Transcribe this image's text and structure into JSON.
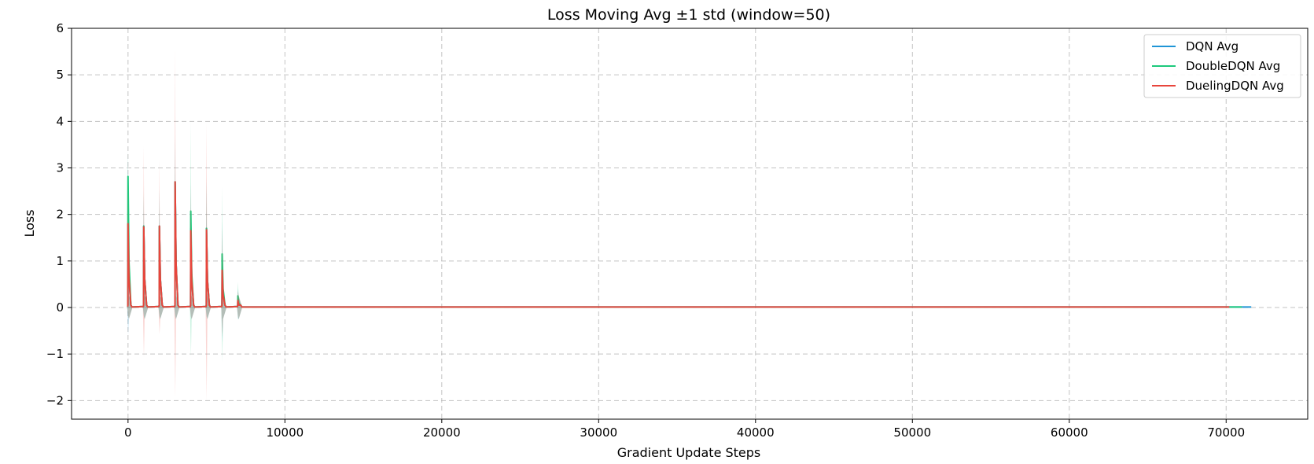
{
  "chart_data": {
    "type": "line",
    "title": "Loss Moving Avg ±1 std (window=50)",
    "xlabel": "Gradient Update Steps",
    "ylabel": "Loss",
    "xlim": [
      -3600,
      75200
    ],
    "ylim": [
      -2.4,
      6.0
    ],
    "xticks": [
      0,
      10000,
      20000,
      30000,
      40000,
      50000,
      60000,
      70000
    ],
    "yticks": [
      -2,
      -1,
      0,
      1,
      2,
      3,
      4,
      5,
      6
    ],
    "xtick_labels": [
      "0",
      "10000",
      "20000",
      "30000",
      "40000",
      "50000",
      "60000",
      "70000"
    ],
    "ytick_labels": [
      "−2",
      "−1",
      "0",
      "1",
      "2",
      "3",
      "4",
      "5",
      "6"
    ],
    "grid": true,
    "legend_position": "top-right",
    "series": [
      {
        "name": "DQN Avg",
        "color": "#1f95d6",
        "end_x": 71600,
        "peaks": [
          {
            "x": 0,
            "avg": 1.8,
            "std": 1.5
          },
          {
            "x": 1000,
            "avg": 1.75,
            "std": 0.7
          },
          {
            "x": 2000,
            "avg": 1.75,
            "std": 0.8
          },
          {
            "x": 3000,
            "avg": 2.7,
            "std": 1.0
          },
          {
            "x": 4000,
            "avg": 1.7,
            "std": 1.0
          },
          {
            "x": 5000,
            "avg": 1.7,
            "std": 1.0
          },
          {
            "x": 6000,
            "avg": 0.85,
            "std": 1.0
          },
          {
            "x": 7000,
            "avg": 0.15,
            "std": 0.25
          }
        ]
      },
      {
        "name": "DoubleDQN Avg",
        "color": "#1dc97c",
        "end_x": 71000,
        "peaks": [
          {
            "x": 0,
            "avg": 2.82,
            "std": 0.6
          },
          {
            "x": 1000,
            "avg": 1.75,
            "std": 0.8
          },
          {
            "x": 2000,
            "avg": 1.75,
            "std": 0.8
          },
          {
            "x": 3000,
            "avg": 2.7,
            "std": 0.9
          },
          {
            "x": 4000,
            "avg": 2.07,
            "std": 1.95
          },
          {
            "x": 5000,
            "avg": 1.7,
            "std": 1.1
          },
          {
            "x": 6000,
            "avg": 1.15,
            "std": 1.45
          },
          {
            "x": 7000,
            "avg": 0.25,
            "std": 0.3
          }
        ]
      },
      {
        "name": "DuelingDQN Avg",
        "color": "#e8453c",
        "end_x": 70200,
        "peaks": [
          {
            "x": 0,
            "avg": 1.8,
            "std": 0.9
          },
          {
            "x": 1000,
            "avg": 1.73,
            "std": 1.75
          },
          {
            "x": 2000,
            "avg": 1.75,
            "std": 1.45
          },
          {
            "x": 3000,
            "avg": 2.7,
            "std": 2.9
          },
          {
            "x": 4000,
            "avg": 1.65,
            "std": 1.0
          },
          {
            "x": 5000,
            "avg": 1.67,
            "std": 2.3
          },
          {
            "x": 6000,
            "avg": 0.8,
            "std": 0.9
          },
          {
            "x": 7000,
            "avg": 0.15,
            "std": 0.2
          }
        ]
      }
    ]
  }
}
